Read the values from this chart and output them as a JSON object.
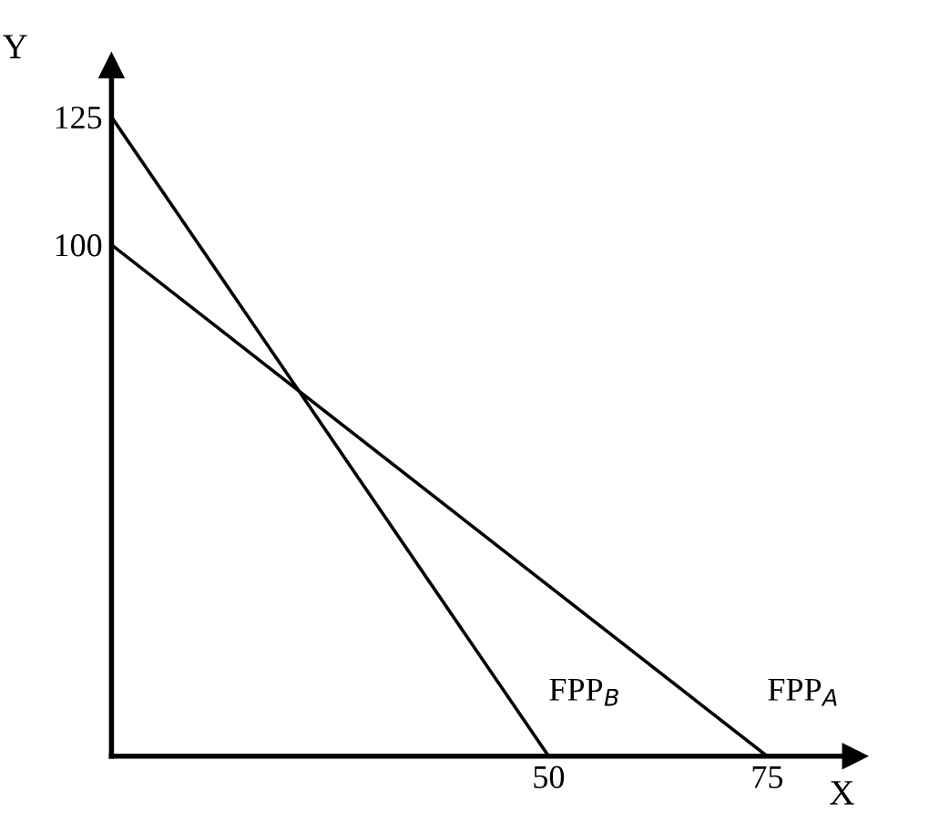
{
  "chart_data": {
    "type": "line",
    "xlabel": "X",
    "ylabel": "Y",
    "series": [
      {
        "name": "FPP$_{A}$",
        "color": "#000000",
        "x": [
          0,
          75
        ],
        "values": [
          100,
          0
        ]
      },
      {
        "name": "FPP$_{B}$",
        "color": "#000000",
        "x": [
          0,
          50
        ],
        "values": [
          125,
          0
        ]
      }
    ],
    "xlim": [
      0,
      85
    ],
    "ylim": [
      0,
      135
    ],
    "xticks": [
      50,
      75
    ],
    "yticks": [
      100,
      125
    ],
    "grid": false,
    "legend": false,
    "marker": "none",
    "line_style": "solid"
  }
}
